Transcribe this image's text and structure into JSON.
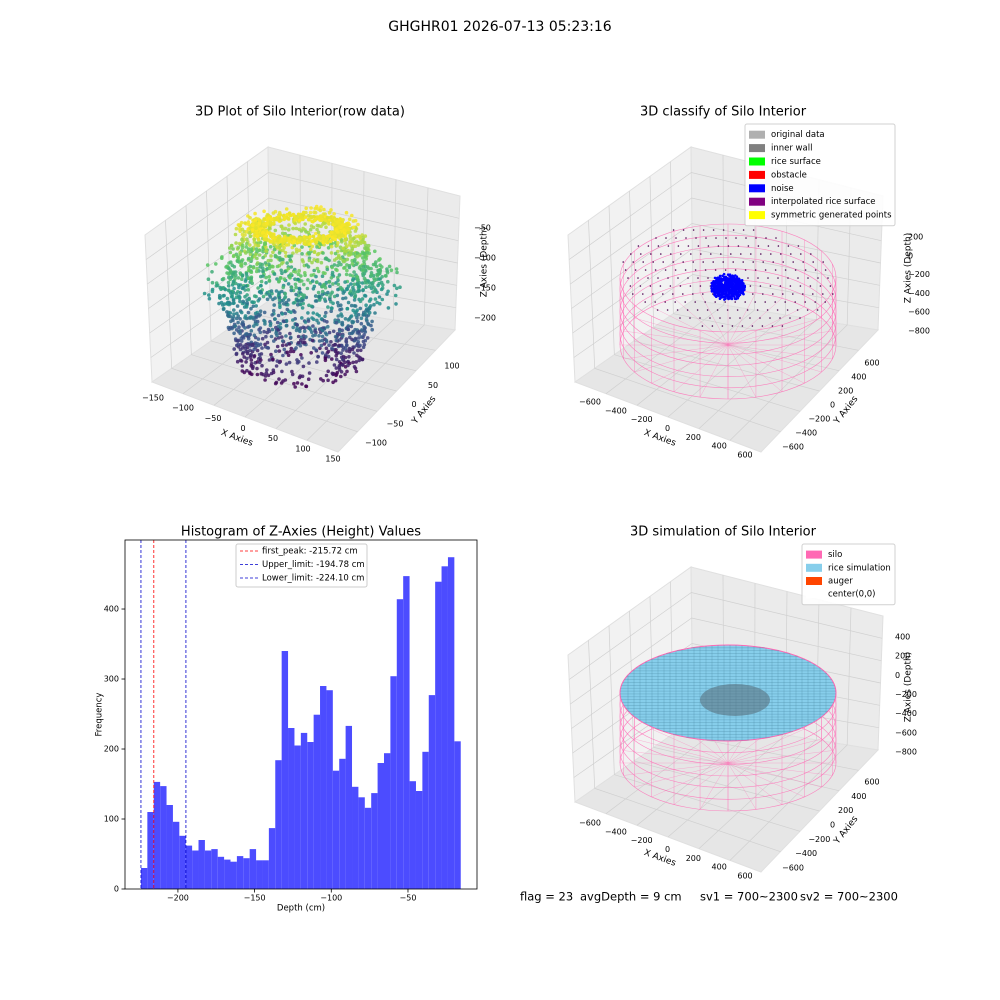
{
  "title": "GHGHR01 2026-07-13 05:23:16",
  "chart_data": [
    {
      "type": "scatter3d",
      "title": "3D Plot of Silo Interior(row data)",
      "xlabel": "X Axies",
      "ylabel": "Y Axies",
      "zlabel": "Z Axies (Depth)",
      "colormap": "viridis",
      "xlim": [
        -150,
        150
      ],
      "ylim": [
        -100,
        100
      ],
      "zlim": [
        -200,
        -50
      ],
      "xticks": [
        {
          "value": -150,
          "label": "−150"
        },
        {
          "value": -100,
          "label": "−100"
        },
        {
          "value": -50,
          "label": "−50"
        },
        0,
        50,
        100,
        150
      ],
      "yticks": [
        {
          "value": -100,
          "label": "−100"
        },
        {
          "value": -50,
          "label": "−50"
        },
        0,
        50,
        100
      ],
      "zticks": [
        {
          "value": -50,
          "label": "−50"
        },
        {
          "value": -100,
          "label": "−100"
        },
        {
          "value": -150,
          "label": "−150"
        },
        {
          "value": -200,
          "label": "−200"
        }
      ]
    },
    {
      "type": "scatter3d",
      "title": "3D classify of Silo Interior",
      "xlabel": "X Axies",
      "ylabel": "Y Axies",
      "zlabel": "Z Axies (Depth)",
      "xlim": [
        -600,
        600
      ],
      "ylim": [
        -600,
        600
      ],
      "zlim": [
        -800,
        200
      ],
      "xticks": [
        {
          "value": -600,
          "label": "−600"
        },
        {
          "value": -400,
          "label": "−400"
        },
        {
          "value": -200,
          "label": "−200"
        },
        0,
        200,
        400,
        600
      ],
      "yticks": [
        {
          "value": -600,
          "label": "−600"
        },
        {
          "value": -400,
          "label": "−400"
        },
        {
          "value": -200,
          "label": "−200"
        },
        0,
        200,
        400,
        600
      ],
      "zticks": [
        200,
        0,
        {
          "value": -200,
          "label": "−200"
        },
        {
          "value": -400,
          "label": "−400"
        },
        {
          "value": -600,
          "label": "−600"
        },
        {
          "value": -800,
          "label": "−800"
        }
      ],
      "legend": [
        {
          "name": "original data",
          "color": "#b0b0b0"
        },
        {
          "name": "inner wall",
          "color": "#808080"
        },
        {
          "name": "rice surface",
          "color": "#00ff00"
        },
        {
          "name": "obstacle",
          "color": "#ff0000"
        },
        {
          "name": "noise",
          "color": "#0000ff"
        },
        {
          "name": "interpolated rice surface",
          "color": "#800080"
        },
        {
          "name": "symmetric generated points",
          "color": "#ffff00"
        }
      ]
    },
    {
      "type": "histogram",
      "title": "Histogram of Z-Axies (Height) Values",
      "xlabel": "Depth (cm)",
      "ylabel": "Frequency",
      "color": "#4c4cff",
      "xlim": [
        -234.5,
        -5
      ],
      "ylim": [
        0,
        498.6
      ],
      "xticks": [
        {
          "value": -200,
          "label": "−200"
        },
        {
          "value": -150,
          "label": "−150"
        },
        {
          "value": -100,
          "label": "−100"
        },
        {
          "value": -50,
          "label": "−50"
        }
      ],
      "yticks": [
        0,
        100,
        200,
        300,
        400
      ],
      "bins": [
        -224.1,
        -219.93,
        -215.76,
        -211.59,
        -207.42,
        -203.25,
        -199.08,
        -194.91,
        -190.74,
        -186.57,
        -182.4,
        -178.23,
        -174.06,
        -169.89,
        -165.72,
        -161.55,
        -157.38,
        -153.21,
        -149.04,
        -144.87,
        -140.7,
        -136.53,
        -132.36,
        -128.19,
        -124.02,
        -119.85,
        -115.68,
        -111.51,
        -107.34,
        -103.17,
        -99.0,
        -94.83,
        -90.66,
        -86.49,
        -82.32,
        -78.15,
        -73.98,
        -69.81,
        -65.64,
        -61.47,
        -57.3,
        -53.13,
        -48.96,
        -44.79,
        -40.62,
        -36.45,
        -32.28,
        -28.11,
        -23.94,
        -19.77,
        -15.6
      ],
      "values": [
        30,
        110,
        153,
        147,
        120,
        96,
        76,
        62,
        55,
        70,
        55,
        57,
        46,
        42,
        39,
        47,
        44,
        57,
        41,
        41,
        87,
        184,
        340,
        230,
        205,
        223,
        210,
        249,
        290,
        284,
        169,
        186,
        233,
        146,
        131,
        116,
        137,
        180,
        194,
        304,
        414,
        447,
        154,
        140,
        196,
        277,
        439,
        461,
        474,
        211
      ],
      "vlines": [
        {
          "value": -215.72,
          "label": "first_peak: -215.72 cm",
          "color": "#ff0000"
        },
        {
          "value": -194.78,
          "label": "Upper_limit: -194.78 cm",
          "color": "#0000cc"
        },
        {
          "value": -224.1,
          "label": "Lower_limit: -224.10 cm",
          "color": "#0000cc"
        }
      ]
    },
    {
      "type": "surface3d",
      "title": "3D simulation of Silo Interior",
      "xlabel": "X Axies",
      "ylabel": "Y Axies",
      "zlabel": "Z Axies (Depth)",
      "xlim": [
        -600,
        600
      ],
      "ylim": [
        -600,
        600
      ],
      "zlim": [
        -800,
        400
      ],
      "xticks": [
        {
          "value": -600,
          "label": "−600"
        },
        {
          "value": -400,
          "label": "−400"
        },
        {
          "value": -200,
          "label": "−200"
        },
        0,
        200,
        400,
        600
      ],
      "yticks": [
        {
          "value": -600,
          "label": "−600"
        },
        {
          "value": -400,
          "label": "−400"
        },
        {
          "value": -200,
          "label": "−200"
        },
        0,
        200,
        400,
        600
      ],
      "zticks": [
        400,
        200,
        0,
        {
          "value": -200,
          "label": "−200"
        },
        {
          "value": -400,
          "label": "−400"
        },
        {
          "value": -600,
          "label": "−600"
        },
        {
          "value": -800,
          "label": "−800"
        }
      ],
      "legend": [
        {
          "name": "silo",
          "color": "#ff69b4"
        },
        {
          "name": "rice simulation",
          "color": "#87ceeb"
        },
        {
          "name": "auger",
          "color": "#ff4500"
        },
        {
          "name": "center(0,0)",
          "color": "#ffffff"
        }
      ]
    }
  ],
  "footer": [
    "flag = 23",
    "avgDepth = 9 cm",
    "sv1 = 700~2300",
    "sv2 = 700~2300"
  ]
}
